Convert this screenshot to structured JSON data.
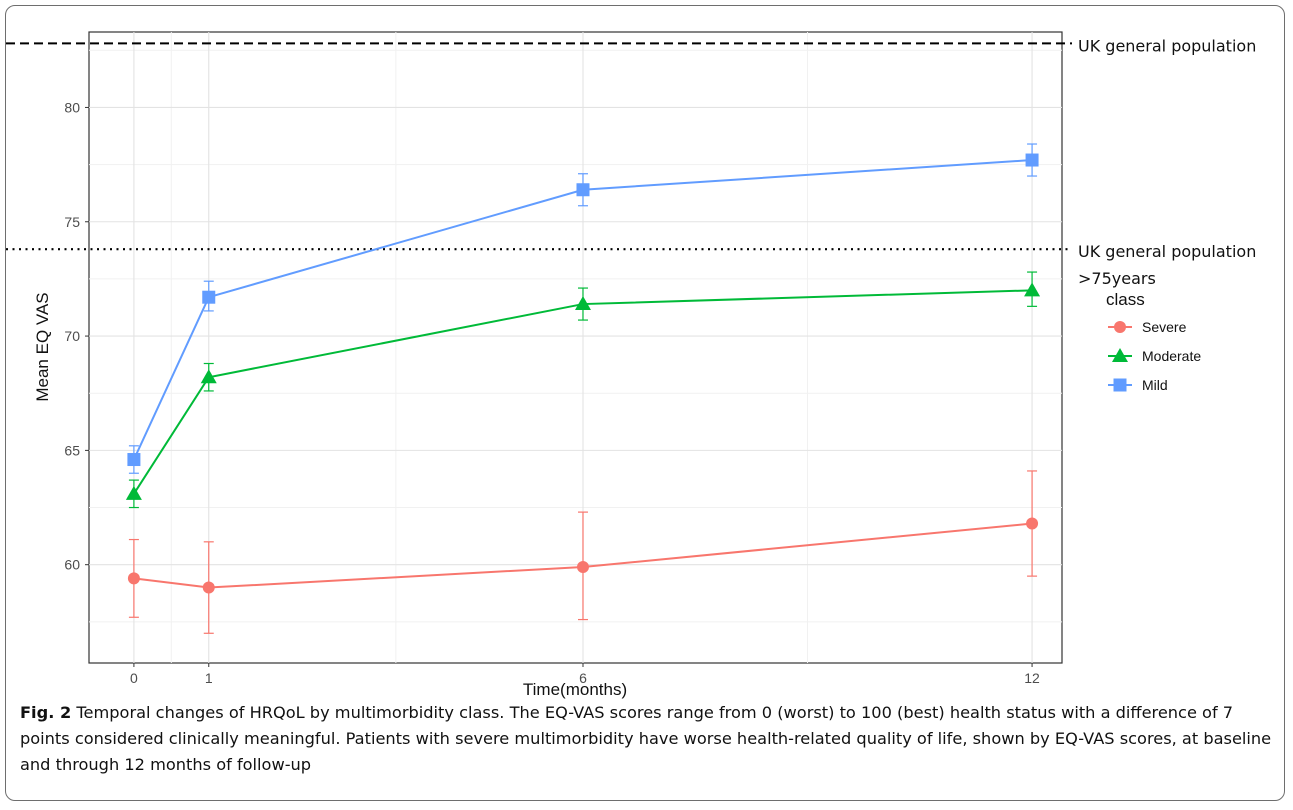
{
  "chart_data": {
    "type": "line",
    "xlabel": "Time(months)",
    "ylabel": "Mean EQ VAS",
    "x": [
      0,
      1,
      6,
      12
    ],
    "x_ticks": [
      "0",
      "1",
      "6",
      "12"
    ],
    "y_ticks": [
      60,
      65,
      70,
      75,
      80
    ],
    "xlim": [
      -0.6,
      12.4
    ],
    "ylim": [
      55.7,
      83.3
    ],
    "grid": true,
    "legend_title": "class",
    "legend_position": "right",
    "series": [
      {
        "name": "Severe",
        "color": "#F8766D",
        "marker": "circle",
        "values": [
          59.4,
          59.0,
          59.9,
          61.8
        ],
        "error_low": [
          57.7,
          57.0,
          57.6,
          59.5
        ],
        "error_high": [
          61.1,
          61.0,
          62.3,
          64.1
        ]
      },
      {
        "name": "Moderate",
        "color": "#00BA38",
        "marker": "triangle",
        "values": [
          63.1,
          68.2,
          71.4,
          72.0
        ],
        "error_low": [
          62.5,
          67.6,
          70.7,
          71.3
        ],
        "error_high": [
          63.7,
          68.8,
          72.1,
          72.8
        ]
      },
      {
        "name": "Mild",
        "color": "#619CFF",
        "marker": "square",
        "values": [
          64.6,
          71.7,
          76.4,
          77.7
        ],
        "error_low": [
          64.0,
          71.1,
          75.7,
          77.0
        ],
        "error_high": [
          65.2,
          72.4,
          77.1,
          78.4
        ]
      }
    ],
    "reference_lines": [
      {
        "value": 82.8,
        "style": "dashed",
        "label_lines": [
          "UK general population"
        ]
      },
      {
        "value": 73.8,
        "style": "dotted",
        "label_lines": [
          "UK general population",
          ">75years"
        ]
      }
    ]
  },
  "caption": {
    "label": "Fig. 2",
    "text": "Temporal changes of HRQoL by multimorbidity class. The EQ-VAS scores range from 0 (worst) to 100 (best) health status with a difference of 7 points considered clinically meaningful. Patients with severe multimorbidity have worse health-related quality of life, shown by EQ-VAS scores, at baseline and through 12 months of follow-up"
  }
}
